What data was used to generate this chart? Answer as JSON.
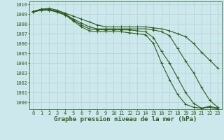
{
  "title": "Graphe pression niveau de la mer (hPa)",
  "background_color": "#cce8ec",
  "plot_bg_color": "#cce8ec",
  "grid_color": "#aacccc",
  "line_color": "#2d5a1b",
  "xlim": [
    -0.5,
    23.5
  ],
  "ylim": [
    999.3,
    1010.3
  ],
  "yticks": [
    1000,
    1001,
    1002,
    1003,
    1004,
    1005,
    1006,
    1007,
    1008,
    1009,
    1010
  ],
  "xticks": [
    0,
    1,
    2,
    3,
    4,
    5,
    6,
    7,
    8,
    9,
    10,
    11,
    12,
    13,
    14,
    15,
    16,
    17,
    18,
    19,
    20,
    21,
    22,
    23
  ],
  "series": [
    [
      1009.3,
      1009.5,
      1009.6,
      1009.4,
      1009.1,
      1008.8,
      1008.5,
      1008.2,
      1007.9,
      1007.7,
      1007.7,
      1007.7,
      1007.7,
      1007.7,
      1007.7,
      1007.6,
      1007.5,
      1007.3,
      1007.0,
      1006.7,
      1006.0,
      1005.1,
      1004.3,
      1003.5
    ],
    [
      1009.2,
      1009.5,
      1009.5,
      1009.2,
      1009.0,
      1008.5,
      1008.1,
      1007.7,
      1007.5,
      1007.5,
      1007.5,
      1007.5,
      1007.5,
      1007.5,
      1007.5,
      1007.4,
      1007.2,
      1006.8,
      1005.5,
      1004.2,
      1003.0,
      1001.5,
      1000.2,
      999.5
    ],
    [
      1009.2,
      1009.5,
      1009.5,
      1009.3,
      1009.0,
      1008.4,
      1007.9,
      1007.5,
      1007.4,
      1007.4,
      1007.4,
      1007.4,
      1007.4,
      1007.3,
      1007.2,
      1006.6,
      1005.2,
      1004.0,
      1002.5,
      1001.0,
      999.9,
      999.4,
      999.5,
      999.3
    ],
    [
      1009.2,
      1009.4,
      1009.4,
      1009.2,
      1008.9,
      1008.3,
      1007.7,
      1007.3,
      1007.2,
      1007.2,
      1007.2,
      1007.2,
      1007.1,
      1007.0,
      1006.9,
      1006.0,
      1004.0,
      1002.3,
      1000.8,
      999.8,
      999.5,
      999.4,
      999.6,
      999.4
    ]
  ],
  "marker": "+",
  "markersize": 3,
  "linewidth": 0.8,
  "title_fontsize": 6.5,
  "tick_fontsize": 5.0
}
